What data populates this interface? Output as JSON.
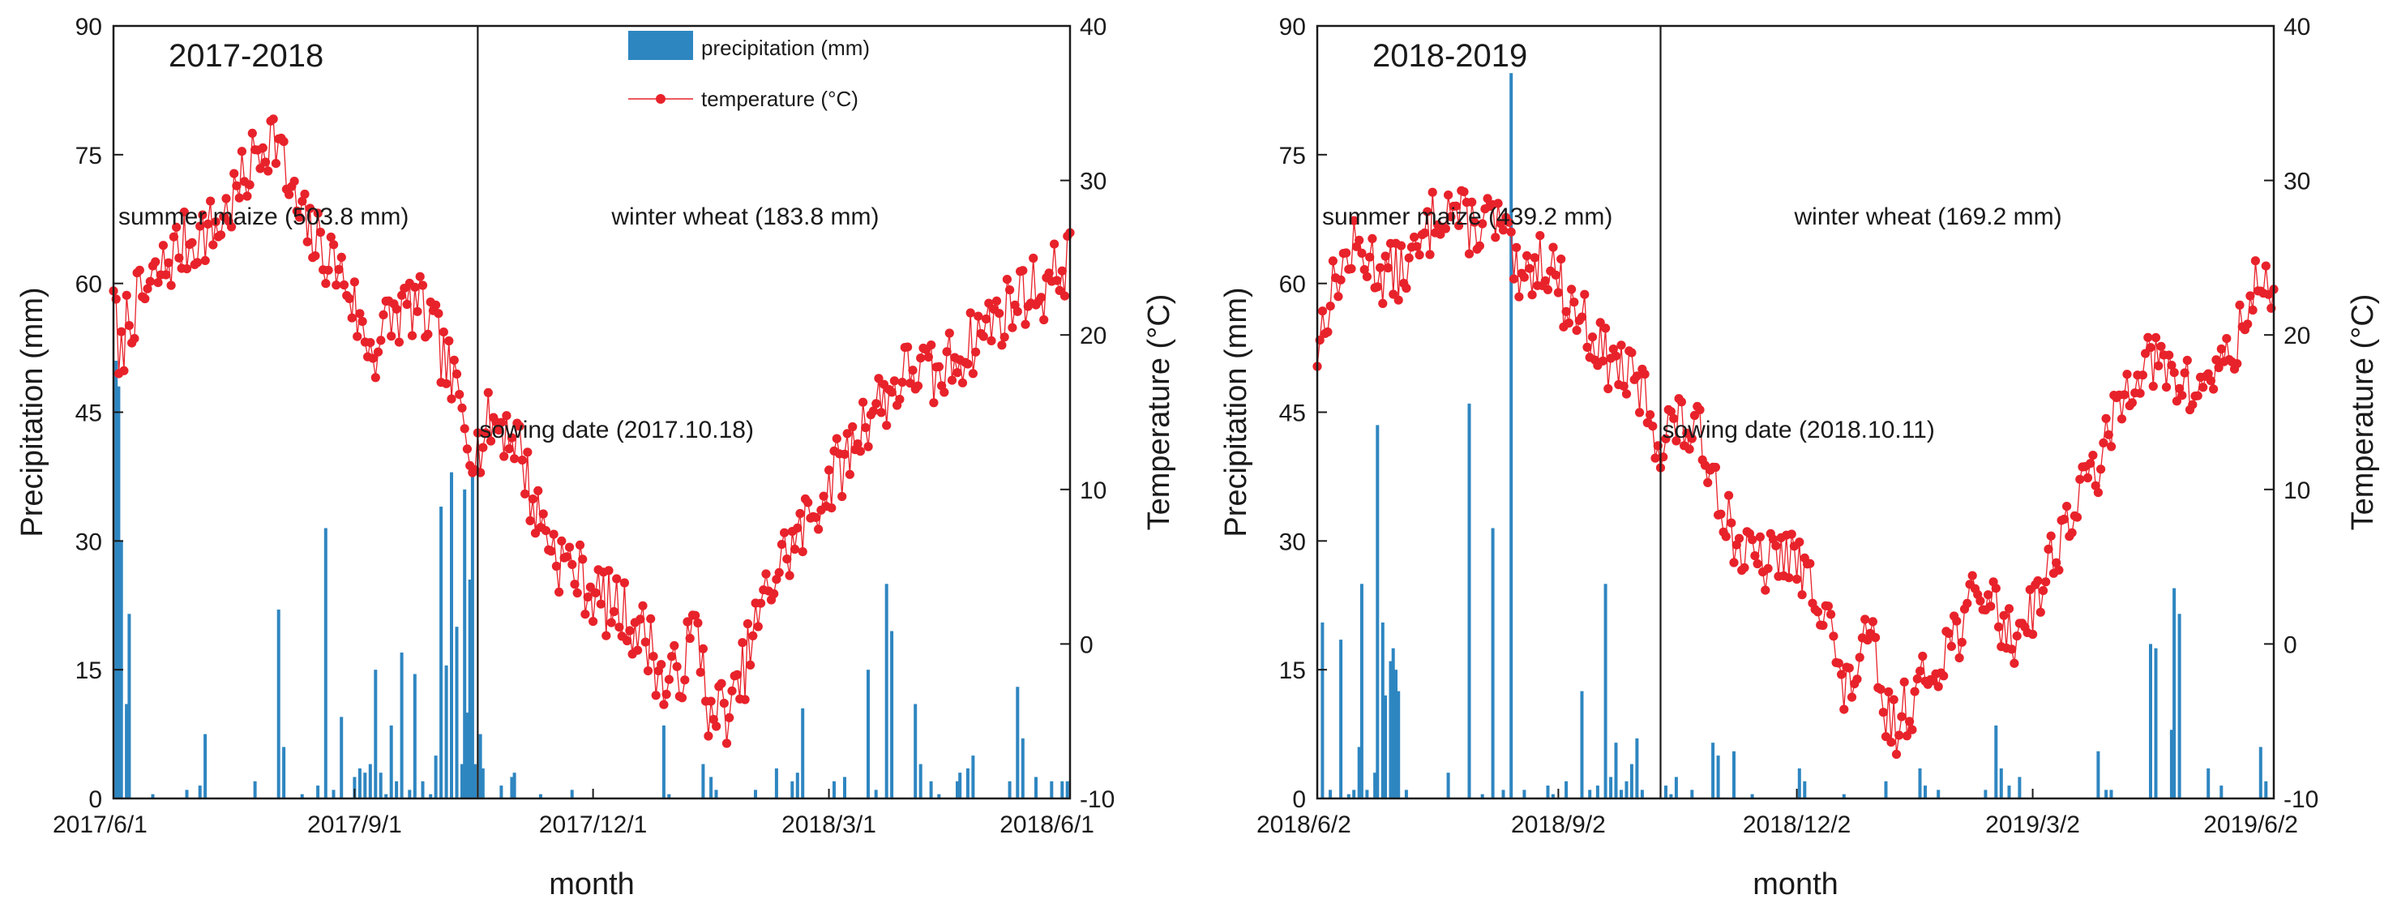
{
  "colors": {
    "precip": "#2e86c1",
    "temp": "#e8222a",
    "axis": "#1a1a1a"
  },
  "legend": {
    "precip_label": "precipitation (mm)",
    "temp_label": "temperature (°C)"
  },
  "chart_data": [
    {
      "type": "bar+line",
      "title": "2017-2018",
      "xlabel": "month",
      "ylabel": "Precipitation (mm)",
      "y2label": "Temperature (°C)",
      "ylim": [
        0,
        90
      ],
      "y2lim": [
        -10,
        40
      ],
      "yticks": [
        "0",
        "15",
        "30",
        "45",
        "60",
        "75",
        "90"
      ],
      "y2ticks": [
        "-10",
        "0",
        "10",
        "20",
        "30",
        "40"
      ],
      "xlim": [
        0,
        365
      ],
      "xticks": [
        {
          "label": "2017/6/1",
          "day": 0
        },
        {
          "label": "2017/9/1",
          "day": 92
        },
        {
          "label": "2017/12/1",
          "day": 183
        },
        {
          "label": "2018/3/1",
          "day": 273
        },
        {
          "label": "2018/6/1",
          "day": 365
        }
      ],
      "sowing_day": 139,
      "sowing_label": "sowing date (2017.10.18)",
      "summer_label": "summer maize (503.8 mm)",
      "winter_label": "winter wheat (183.8 mm)",
      "precipitation": [
        [
          1,
          51
        ],
        [
          2,
          48
        ],
        [
          3,
          30
        ],
        [
          5,
          11
        ],
        [
          6,
          21.5
        ],
        [
          15,
          0.5
        ],
        [
          28,
          1
        ],
        [
          33,
          1.5
        ],
        [
          35,
          7.5
        ],
        [
          54,
          2
        ],
        [
          63,
          22
        ],
        [
          65,
          6
        ],
        [
          72,
          0.5
        ],
        [
          78,
          1.5
        ],
        [
          81,
          31.5
        ],
        [
          84,
          1
        ],
        [
          87,
          9.5
        ],
        [
          92,
          2.5
        ],
        [
          94,
          3.5
        ],
        [
          96,
          3
        ],
        [
          98,
          4
        ],
        [
          100,
          15
        ],
        [
          102,
          3
        ],
        [
          104,
          0.5
        ],
        [
          106,
          8.5
        ],
        [
          108,
          2
        ],
        [
          110,
          17
        ],
        [
          113,
          1
        ],
        [
          115,
          14.5
        ],
        [
          118,
          2
        ],
        [
          121,
          0.5
        ],
        [
          123,
          5
        ],
        [
          125,
          34
        ],
        [
          127,
          15.5
        ],
        [
          129,
          38
        ],
        [
          131,
          20
        ],
        [
          133,
          4
        ],
        [
          134,
          36
        ],
        [
          135,
          10
        ],
        [
          136,
          25.5
        ],
        [
          137,
          39
        ],
        [
          138,
          4
        ],
        [
          140,
          7.5
        ],
        [
          141,
          3.5
        ],
        [
          148,
          1.5
        ],
        [
          152,
          2.5
        ],
        [
          153,
          3
        ],
        [
          163,
          0.5
        ],
        [
          175,
          1
        ],
        [
          210,
          8.5
        ],
        [
          212,
          0.5
        ],
        [
          225,
          4
        ],
        [
          228,
          2.5
        ],
        [
          230,
          1
        ],
        [
          245,
          1
        ],
        [
          253,
          3.5
        ],
        [
          259,
          2
        ],
        [
          261,
          3
        ],
        [
          263,
          10.5
        ],
        [
          275,
          2
        ],
        [
          279,
          2.5
        ],
        [
          288,
          15
        ],
        [
          291,
          1
        ],
        [
          295,
          25
        ],
        [
          297,
          19.5
        ],
        [
          306,
          11
        ],
        [
          308,
          4
        ],
        [
          312,
          2
        ],
        [
          315,
          0.5
        ],
        [
          322,
          2
        ],
        [
          323,
          3
        ],
        [
          326,
          3.5
        ],
        [
          328,
          5
        ],
        [
          342,
          2
        ],
        [
          345,
          13
        ],
        [
          347,
          7
        ],
        [
          352,
          2.5
        ],
        [
          358,
          2
        ],
        [
          362,
          2
        ],
        [
          364,
          2
        ]
      ],
      "temperature_anchors": [
        [
          0,
          24
        ],
        [
          2,
          17
        ],
        [
          5,
          21
        ],
        [
          14,
          23
        ],
        [
          24,
          25.5
        ],
        [
          33,
          26.5
        ],
        [
          40,
          27
        ],
        [
          45,
          28.5
        ],
        [
          50,
          30
        ],
        [
          55,
          32
        ],
        [
          60,
          33
        ],
        [
          63,
          32.5
        ],
        [
          66,
          30
        ],
        [
          70,
          28
        ],
        [
          75,
          26.5
        ],
        [
          80,
          25.5
        ],
        [
          85,
          24.5
        ],
        [
          90,
          23
        ],
        [
          95,
          20
        ],
        [
          100,
          19
        ],
        [
          105,
          21
        ],
        [
          110,
          21.5
        ],
        [
          115,
          22
        ],
        [
          120,
          21
        ],
        [
          125,
          19
        ],
        [
          130,
          16.5
        ],
        [
          135,
          14
        ],
        [
          139,
          12.5
        ],
        [
          144,
          14.5
        ],
        [
          150,
          14
        ],
        [
          155,
          13
        ],
        [
          160,
          9
        ],
        [
          165,
          7.5
        ],
        [
          170,
          5.5
        ],
        [
          175,
          5
        ],
        [
          180,
          4
        ],
        [
          185,
          3
        ],
        [
          190,
          2.5
        ],
        [
          195,
          2
        ],
        [
          200,
          1
        ],
        [
          205,
          0
        ],
        [
          210,
          -3
        ],
        [
          215,
          -2
        ],
        [
          218,
          -1
        ],
        [
          222,
          1
        ],
        [
          225,
          -1
        ],
        [
          228,
          -5.5
        ],
        [
          232,
          -4
        ],
        [
          236,
          -4.5
        ],
        [
          240,
          -2
        ],
        [
          245,
          1
        ],
        [
          250,
          3.5
        ],
        [
          255,
          5.5
        ],
        [
          260,
          6.5
        ],
        [
          265,
          8
        ],
        [
          270,
          9.5
        ],
        [
          275,
          11
        ],
        [
          280,
          12
        ],
        [
          285,
          14
        ],
        [
          290,
          15.5
        ],
        [
          295,
          16
        ],
        [
          300,
          17
        ],
        [
          305,
          18
        ],
        [
          310,
          17.5
        ],
        [
          315,
          17
        ],
        [
          320,
          18.5
        ],
        [
          325,
          19
        ],
        [
          330,
          20
        ],
        [
          335,
          21
        ],
        [
          340,
          21.5
        ],
        [
          345,
          22.5
        ],
        [
          350,
          23
        ],
        [
          355,
          23
        ],
        [
          360,
          24
        ],
        [
          365,
          25
        ]
      ],
      "temperature_amplitude": 2.2,
      "temperature_seed": 7
    },
    {
      "type": "bar+line",
      "title": "2018-2019",
      "xlabel": "month",
      "ylabel": "Precipitation (mm)",
      "y2label": "Temperature (°C)",
      "ylim": [
        0,
        90
      ],
      "y2lim": [
        -10,
        40
      ],
      "yticks": [
        "0",
        "15",
        "30",
        "45",
        "60",
        "75",
        "90"
      ],
      "y2ticks": [
        "-10",
        "0",
        "10",
        "20",
        "30",
        "40"
      ],
      "xlim": [
        0,
        365
      ],
      "xticks": [
        {
          "label": "2018/6/2",
          "day": 0
        },
        {
          "label": "2018/9/2",
          "day": 92
        },
        {
          "label": "2018/12/2",
          "day": 183
        },
        {
          "label": "2019/3/2",
          "day": 273
        },
        {
          "label": "2019/6/2",
          "day": 365
        }
      ],
      "sowing_day": 131,
      "sowing_label": "sowing date (2018.10.11)",
      "summer_label": "summer maize (439.2 mm)",
      "winter_label": "winter wheat (169.2 mm)",
      "precipitation": [
        [
          2,
          20.5
        ],
        [
          5,
          1
        ],
        [
          9,
          18.5
        ],
        [
          12,
          0.5
        ],
        [
          14,
          1
        ],
        [
          16,
          6
        ],
        [
          17,
          25
        ],
        [
          19,
          1
        ],
        [
          22,
          3
        ],
        [
          23,
          43.5
        ],
        [
          25,
          20.5
        ],
        [
          26,
          12
        ],
        [
          28,
          16
        ],
        [
          29,
          17.5
        ],
        [
          30,
          15
        ],
        [
          31,
          12.5
        ],
        [
          34,
          1
        ],
        [
          50,
          3
        ],
        [
          58,
          46
        ],
        [
          63,
          0.5
        ],
        [
          67,
          31.5
        ],
        [
          71,
          1
        ],
        [
          74,
          84.5
        ],
        [
          79,
          1
        ],
        [
          88,
          1.5
        ],
        [
          90,
          0.5
        ],
        [
          95,
          2
        ],
        [
          101,
          12.5
        ],
        [
          104,
          1
        ],
        [
          107,
          1.5
        ],
        [
          110,
          25
        ],
        [
          112,
          2.5
        ],
        [
          114,
          6.5
        ],
        [
          116,
          1
        ],
        [
          118,
          2
        ],
        [
          120,
          4
        ],
        [
          122,
          7
        ],
        [
          124,
          1
        ],
        [
          133,
          1.5
        ],
        [
          135,
          0.5
        ],
        [
          137,
          2.5
        ],
        [
          143,
          1
        ],
        [
          151,
          6.5
        ],
        [
          153,
          5
        ],
        [
          159,
          5.5
        ],
        [
          166,
          0.5
        ],
        [
          184,
          3.5
        ],
        [
          186,
          2
        ],
        [
          201,
          0.5
        ],
        [
          217,
          2
        ],
        [
          230,
          3.5
        ],
        [
          232,
          1.5
        ],
        [
          237,
          1
        ],
        [
          255,
          1
        ],
        [
          259,
          8.5
        ],
        [
          261,
          3.5
        ],
        [
          264,
          1.5
        ],
        [
          268,
          2.5
        ],
        [
          298,
          5.5
        ],
        [
          301,
          1
        ],
        [
          303,
          1
        ],
        [
          318,
          18
        ],
        [
          320,
          17.5
        ],
        [
          326,
          8
        ],
        [
          327,
          24.5
        ],
        [
          329,
          21.5
        ],
        [
          340,
          3.5
        ],
        [
          345,
          1.5
        ],
        [
          360,
          6
        ],
        [
          362,
          2
        ]
      ],
      "temperature_anchors": [
        [
          0,
          19
        ],
        [
          3,
          21.5
        ],
        [
          8,
          24
        ],
        [
          14,
          25.5
        ],
        [
          20,
          25
        ],
        [
          25,
          24
        ],
        [
          30,
          24
        ],
        [
          35,
          24.5
        ],
        [
          40,
          25.5
        ],
        [
          45,
          28
        ],
        [
          50,
          28.5
        ],
        [
          55,
          27.5
        ],
        [
          60,
          27
        ],
        [
          65,
          27.5
        ],
        [
          70,
          27
        ],
        [
          75,
          24.5
        ],
        [
          78,
          22
        ],
        [
          80,
          24
        ],
        [
          85,
          25
        ],
        [
          90,
          24.5
        ],
        [
          95,
          22
        ],
        [
          100,
          21.5
        ],
        [
          105,
          20
        ],
        [
          110,
          18.5
        ],
        [
          115,
          18
        ],
        [
          120,
          17
        ],
        [
          125,
          16
        ],
        [
          129,
          14
        ],
        [
          131,
          12.5
        ],
        [
          135,
          14.5
        ],
        [
          140,
          14
        ],
        [
          145,
          13.5
        ],
        [
          150,
          12
        ],
        [
          155,
          9
        ],
        [
          160,
          6.5
        ],
        [
          165,
          5.5
        ],
        [
          170,
          5
        ],
        [
          175,
          5.5
        ],
        [
          180,
          6
        ],
        [
          185,
          4.5
        ],
        [
          190,
          3.5
        ],
        [
          195,
          2.5
        ],
        [
          200,
          -3.5
        ],
        [
          205,
          -2
        ],
        [
          208,
          -0.5
        ],
        [
          212,
          0
        ],
        [
          215,
          -4
        ],
        [
          220,
          -5.5
        ],
        [
          225,
          -4
        ],
        [
          230,
          -3
        ],
        [
          235,
          -1.5
        ],
        [
          240,
          0
        ],
        [
          245,
          1
        ],
        [
          250,
          2.5
        ],
        [
          255,
          3.5
        ],
        [
          260,
          2
        ],
        [
          265,
          0
        ],
        [
          270,
          2
        ],
        [
          275,
          3
        ],
        [
          280,
          5.5
        ],
        [
          285,
          7.5
        ],
        [
          290,
          9
        ],
        [
          295,
          11
        ],
        [
          300,
          12
        ],
        [
          305,
          15
        ],
        [
          310,
          17
        ],
        [
          315,
          18.5
        ],
        [
          320,
          18
        ],
        [
          325,
          17.5
        ],
        [
          330,
          17
        ],
        [
          335,
          16
        ],
        [
          340,
          17.5
        ],
        [
          345,
          18
        ],
        [
          350,
          19
        ],
        [
          355,
          21.5
        ],
        [
          360,
          24
        ],
        [
          365,
          23
        ]
      ],
      "temperature_amplitude": 2.0,
      "temperature_seed": 13
    }
  ]
}
